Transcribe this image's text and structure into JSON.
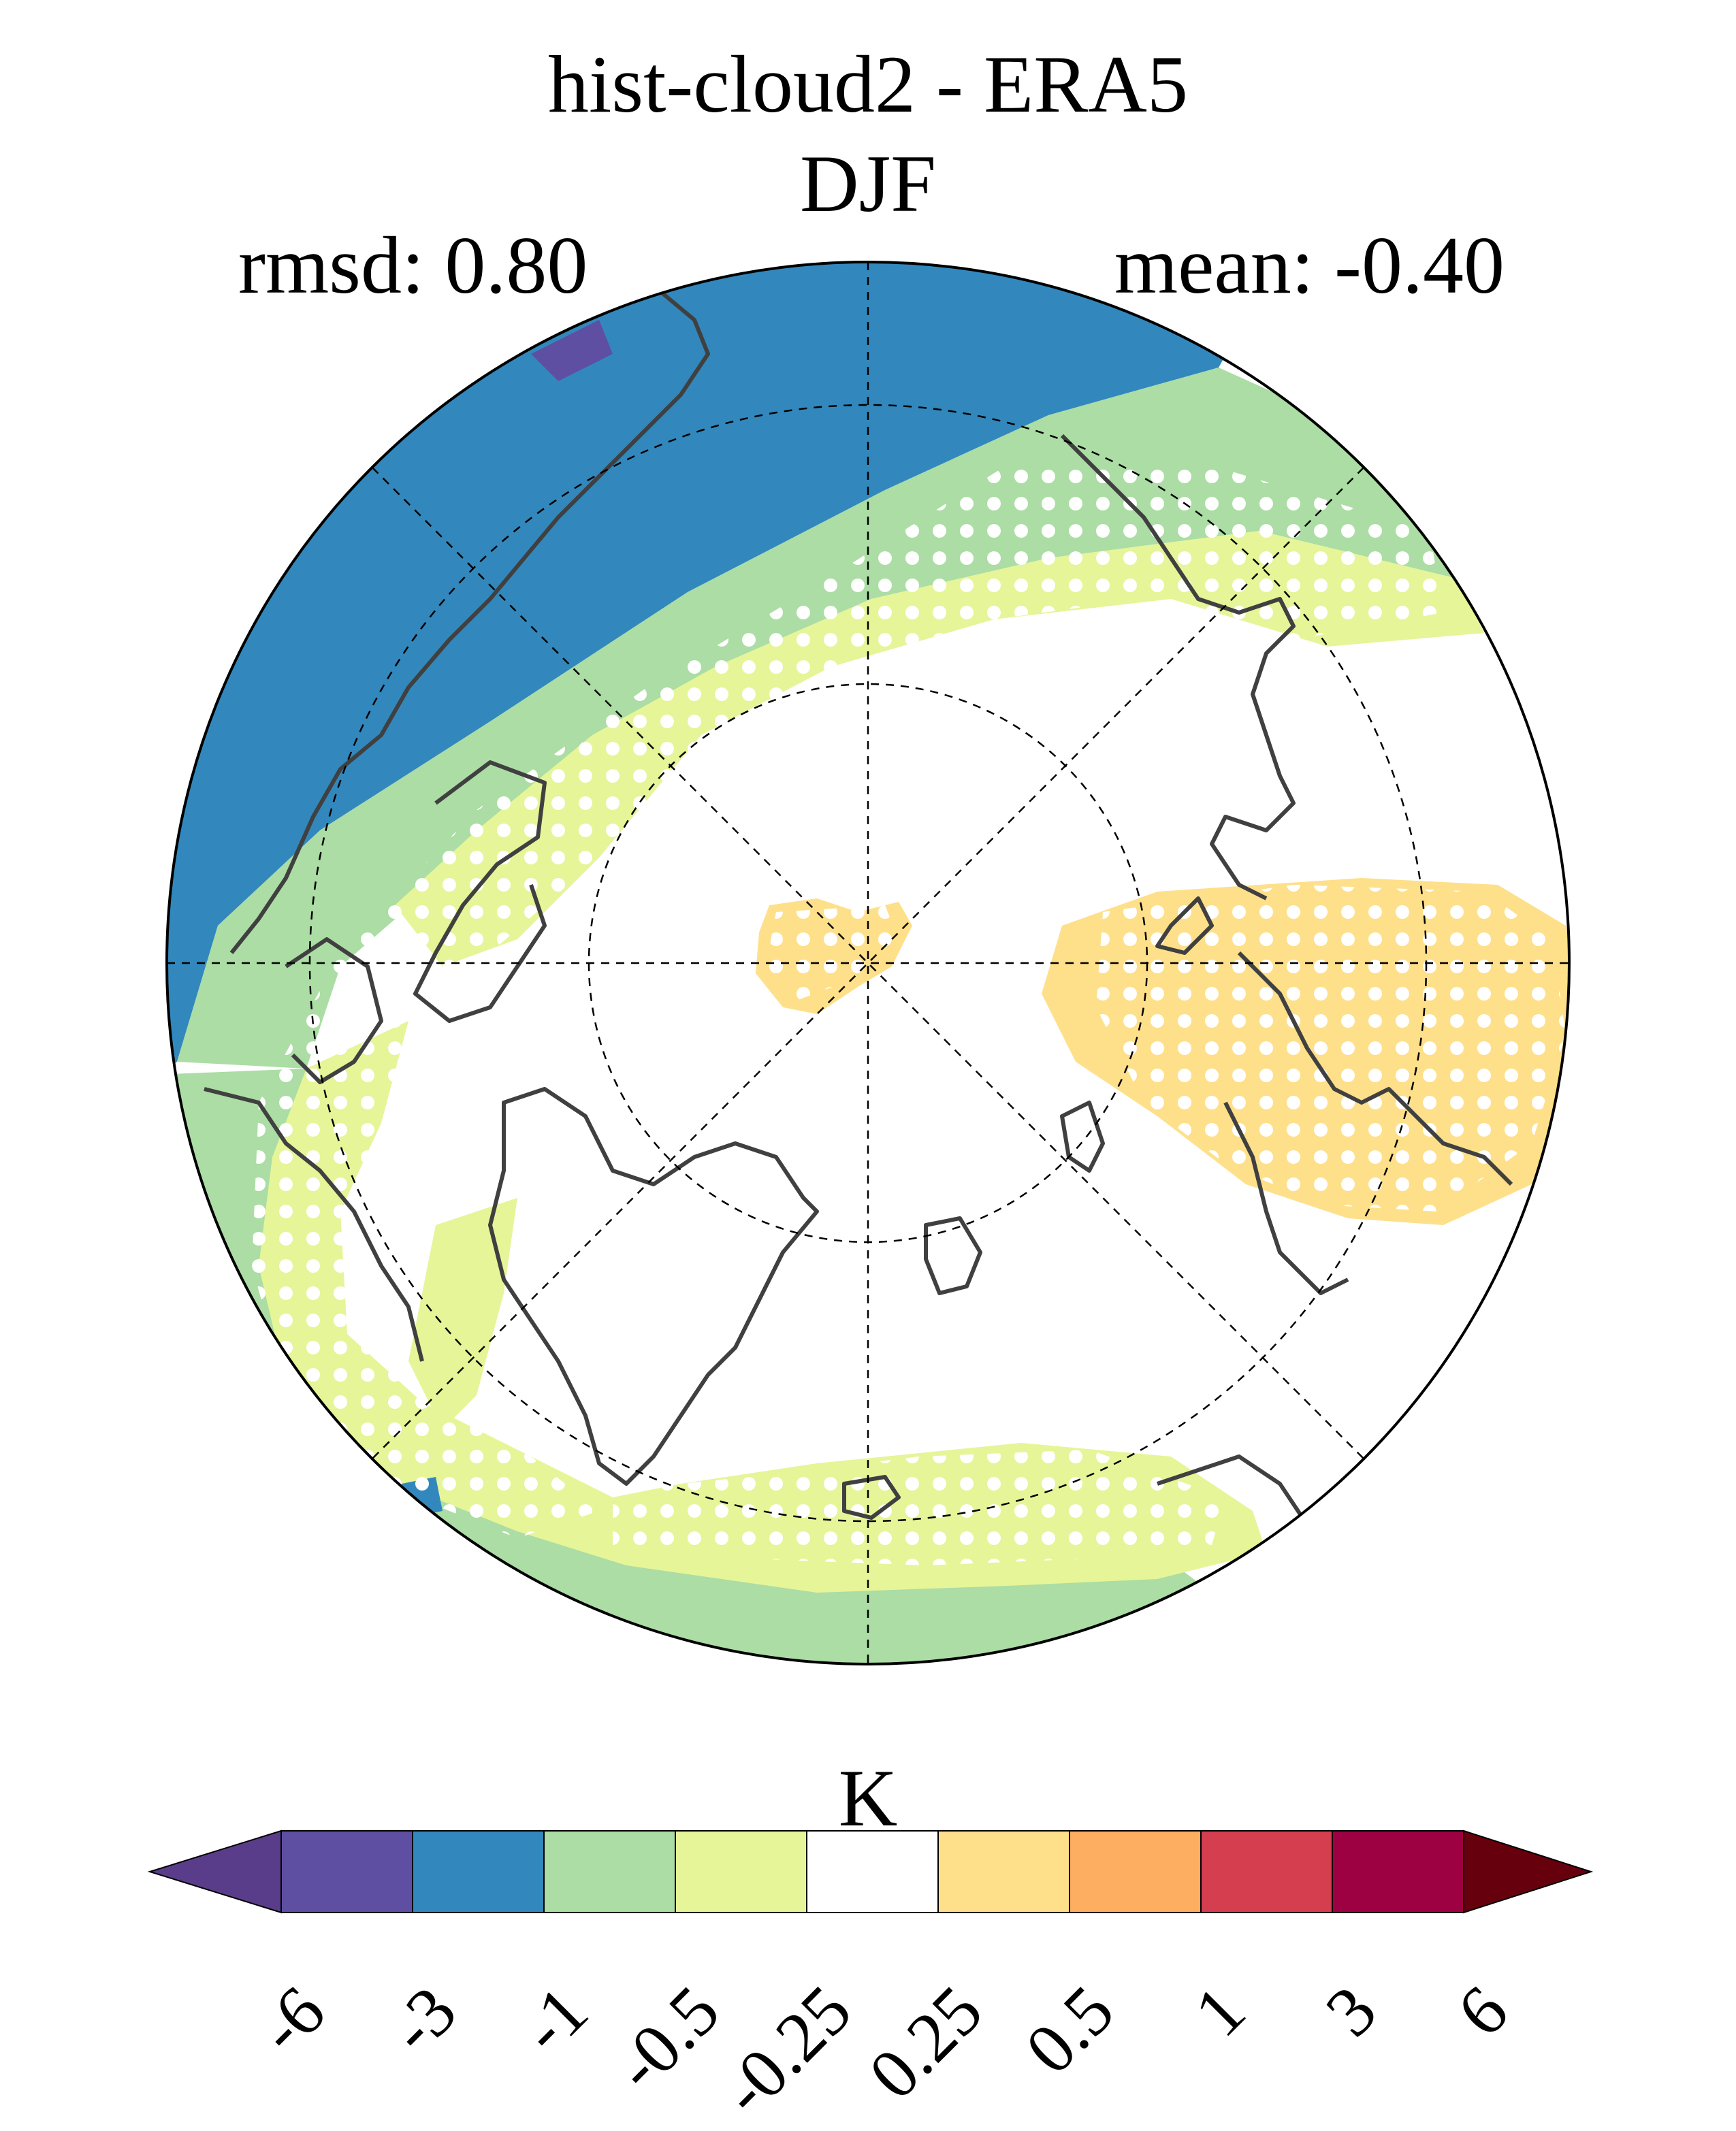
{
  "figure": {
    "title_line1": "hist-cloud2 - ERA5",
    "title_line2": "DJF",
    "rmsd_text": "rmsd: 0.80",
    "mean_text": "mean: -0.40"
  },
  "map": {
    "projection": "north-polar-stereographic",
    "variable_units": "K",
    "stippling": "white-dots-significance",
    "regions": [
      {
        "name": "north-pacific-blue",
        "class": "-3 to -1",
        "color": "#3288bd"
      },
      {
        "name": "pacific-outer-green",
        "class": "-1 to -0.5",
        "color": "#abdda4"
      },
      {
        "name": "pacific-inner-yellow",
        "class": "-0.5 to -0.25",
        "color": "#e6f598"
      },
      {
        "name": "atlantic-green",
        "class": "-1 to -0.5",
        "color": "#abdda4"
      },
      {
        "name": "atlantic-yellow",
        "class": "-0.5 to -0.25",
        "color": "#e6f598"
      },
      {
        "name": "eurasia-warm",
        "class": "0.25 to 0.5",
        "color": "#fee08b"
      },
      {
        "name": "polar-warm-blob",
        "class": "0.25 to 0.5",
        "color": "#fee08b"
      },
      {
        "name": "small-purple-patch",
        "class": "-6 to -3",
        "color": "#5e4fa2"
      }
    ]
  },
  "colorbar": {
    "label": "K",
    "extend": "both",
    "under_color": "#5a3d8a",
    "over_color": "#67000d",
    "colors": [
      "#5e4fa2",
      "#3288bd",
      "#abdda4",
      "#e6f598",
      "#ffffff",
      "#fee08b",
      "#fdae61",
      "#d53e4f",
      "#9e0142"
    ],
    "tick_labels": [
      "-6",
      "-3",
      "-1",
      "-0.5",
      "-0.25",
      "0.25",
      "0.5",
      "1",
      "3",
      "6"
    ]
  }
}
